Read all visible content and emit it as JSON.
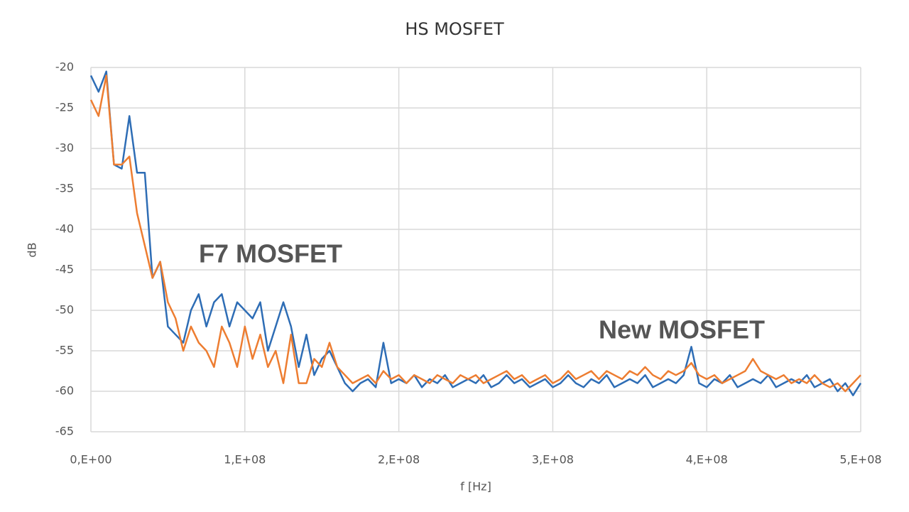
{
  "chart_data": {
    "type": "line",
    "title": "HS MOSFET",
    "x_label": "f [Hz]",
    "y_label": "dB",
    "x": [
      0,
      5000000.0,
      10000000.0,
      15000000.0,
      20000000.0,
      25000000.0,
      30000000.0,
      35000000.0,
      40000000.0,
      45000000.0,
      50000000.0,
      55000000.0,
      60000000.0,
      65000000.0,
      70000000.0,
      75000000.0,
      80000000.0,
      85000000.0,
      90000000.0,
      95000000.0,
      100000000.0,
      105000000.0,
      110000000.0,
      115000000.0,
      120000000.0,
      125000000.0,
      130000000.0,
      135000000.0,
      140000000.0,
      145000000.0,
      150000000.0,
      155000000.0,
      160000000.0,
      165000000.0,
      170000000.0,
      175000000.0,
      180000000.0,
      185000000.0,
      190000000.0,
      195000000.0,
      200000000.0,
      205000000.0,
      210000000.0,
      215000000.0,
      220000000.0,
      225000000.0,
      230000000.0,
      235000000.0,
      240000000.0,
      245000000.0,
      250000000.0,
      255000000.0,
      260000000.0,
      265000000.0,
      270000000.0,
      275000000.0,
      280000000.0,
      285000000.0,
      290000000.0,
      295000000.0,
      300000000.0,
      305000000.0,
      310000000.0,
      315000000.0,
      320000000.0,
      325000000.0,
      330000000.0,
      335000000.0,
      340000000.0,
      345000000.0,
      350000000.0,
      355000000.0,
      360000000.0,
      365000000.0,
      370000000.0,
      375000000.0,
      380000000.0,
      385000000.0,
      390000000.0,
      395000000.0,
      400000000.0,
      405000000.0,
      410000000.0,
      415000000.0,
      420000000.0,
      425000000.0,
      430000000.0,
      435000000.0,
      440000000.0,
      445000000.0,
      450000000.0,
      455000000.0,
      460000000.0,
      465000000.0,
      470000000.0,
      475000000.0,
      480000000.0,
      485000000.0,
      490000000.0,
      495000000.0,
      500000000.0
    ],
    "series": [
      {
        "name": "F7 MOSFET",
        "color": "#2e6db5",
        "values": [
          -21,
          -23,
          -20.5,
          -32,
          -32.5,
          -26,
          -33,
          -33,
          -46,
          -44,
          -52,
          -53,
          -54,
          -50,
          -48,
          -52,
          -49,
          -48,
          -52,
          -49,
          -50,
          -51,
          -49,
          -55,
          -52,
          -49,
          -52,
          -57,
          -53,
          -58,
          -56,
          -55,
          -57,
          -59,
          -60,
          -59,
          -58.5,
          -59.5,
          -54,
          -59,
          -58.5,
          -59,
          -58,
          -59.5,
          -58.5,
          -59,
          -58,
          -59.5,
          -59,
          -58.5,
          -59,
          -58,
          -59.5,
          -59,
          -58,
          -59,
          -58.5,
          -59.5,
          -59,
          -58.5,
          -59.5,
          -59,
          -58,
          -59,
          -59.5,
          -58.5,
          -59,
          -58,
          -59.5,
          -59,
          -58.5,
          -59,
          -58,
          -59.5,
          -59,
          -58.5,
          -59,
          -58,
          -54.5,
          -59,
          -59.5,
          -58.5,
          -59,
          -58,
          -59.5,
          -59,
          -58.5,
          -59,
          -58,
          -59.5,
          -59,
          -58.5,
          -59,
          -58,
          -59.5,
          -59,
          -58.5,
          -60,
          -59,
          -60.5,
          -59
        ]
      },
      {
        "name": "New MOSFET",
        "color": "#ed7d31",
        "values": [
          -24,
          -26,
          -21,
          -32,
          -32,
          -31,
          -38,
          -42,
          -46,
          -44,
          -49,
          -51,
          -55,
          -52,
          -54,
          -55,
          -57,
          -52,
          -54,
          -57,
          -52,
          -56,
          -53,
          -57,
          -55,
          -59,
          -53,
          -59,
          -59,
          -56,
          -57,
          -54,
          -57,
          -58,
          -59,
          -58.5,
          -58,
          -59,
          -57.5,
          -58.5,
          -58,
          -59,
          -58,
          -58.5,
          -59,
          -58,
          -58.5,
          -59,
          -58,
          -58.5,
          -58,
          -59,
          -58.5,
          -58,
          -57.5,
          -58.5,
          -58,
          -59,
          -58.5,
          -58,
          -59,
          -58.5,
          -57.5,
          -58.5,
          -58,
          -57.5,
          -58.5,
          -57.5,
          -58,
          -58.5,
          -57.5,
          -58,
          -57,
          -58,
          -58.5,
          -57.5,
          -58,
          -57.5,
          -56.5,
          -58,
          -58.5,
          -58,
          -59,
          -58.5,
          -58,
          -57.5,
          -56,
          -57.5,
          -58,
          -58.5,
          -58,
          -59,
          -58.5,
          -59,
          -58,
          -59,
          -59.5,
          -59,
          -60,
          -59,
          -58
        ]
      }
    ],
    "xlim": [
      0,
      500000000
    ],
    "xticks": [
      {
        "value": 0,
        "label": "0,E+00"
      },
      {
        "value": 100000000,
        "label": "1,E+08"
      },
      {
        "value": 200000000,
        "label": "2,E+08"
      },
      {
        "value": 300000000,
        "label": "3,E+08"
      },
      {
        "value": 400000000,
        "label": "4,E+08"
      },
      {
        "value": 500000000,
        "label": "5,E+08"
      }
    ],
    "ylim": [
      -65,
      -20
    ],
    "yticks": [
      -65,
      -60,
      -55,
      -50,
      -45,
      -40,
      -35,
      -30,
      -25,
      -20
    ],
    "grid": true
  }
}
